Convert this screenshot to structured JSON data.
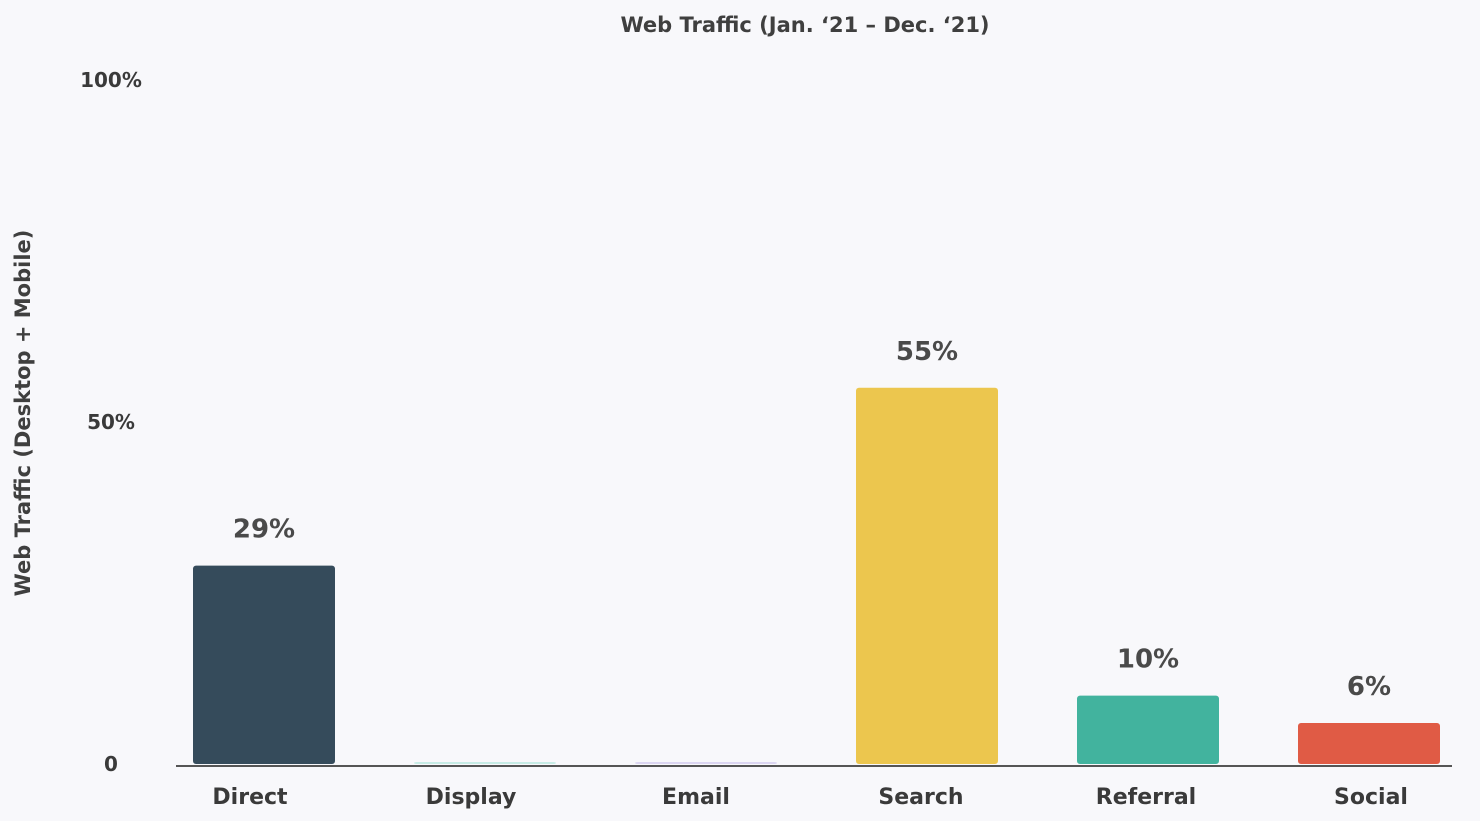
{
  "chart_data": {
    "type": "bar",
    "title": "Web Traffic (Jan. ‘21 – Dec. ‘21)",
    "ylabel": "Web Traffic (Desktop + Mobile)",
    "xlabel": "",
    "ylim": [
      0,
      100
    ],
    "y_ticks": [
      {
        "value": 0,
        "label": "0"
      },
      {
        "value": 50,
        "label": "50%"
      },
      {
        "value": 100,
        "label": "100%"
      }
    ],
    "grid": false,
    "categories": [
      "Direct",
      "Display",
      "Email",
      "Search",
      "Referral",
      "Social"
    ],
    "values": [
      29,
      0.3,
      0.3,
      55,
      10,
      6
    ],
    "data_labels": [
      "29%",
      "",
      "",
      "55%",
      "10%",
      "6%"
    ],
    "colors": [
      "#354b5b",
      "#c7ece6",
      "#dcd6f2",
      "#ecc64e",
      "#42b39e",
      "#e05b45"
    ]
  }
}
